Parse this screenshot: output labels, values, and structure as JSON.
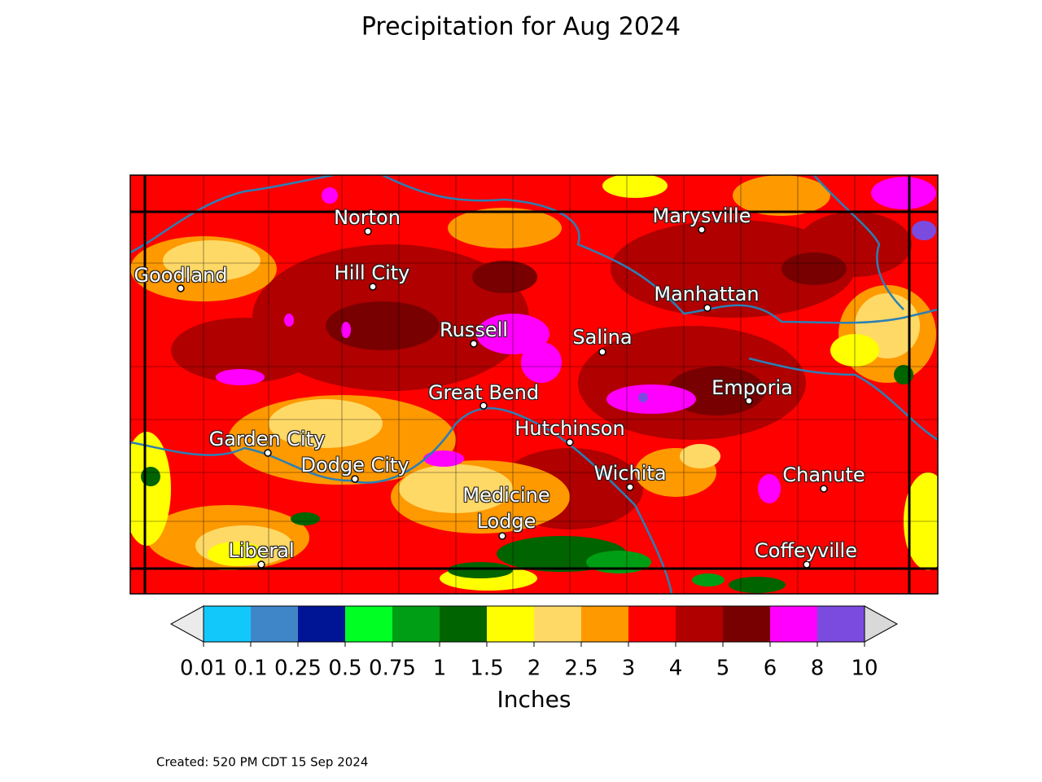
{
  "title": "Precipitation for Aug 2024",
  "cities": [
    {
      "name": "Norton"
    },
    {
      "name": "Marysville"
    },
    {
      "name": "Goodland"
    },
    {
      "name": "Hill City"
    },
    {
      "name": "Manhattan"
    },
    {
      "name": "Russell"
    },
    {
      "name": "Salina"
    },
    {
      "name": "Great Bend"
    },
    {
      "name": "Emporia"
    },
    {
      "name": "Garden City"
    },
    {
      "name": "Hutchinson"
    },
    {
      "name": "Dodge City"
    },
    {
      "name": "Wichita"
    },
    {
      "name": "Chanute"
    },
    {
      "name": "Medicine Lodge"
    },
    {
      "name": "Liberal"
    },
    {
      "name": "Coffeyville"
    }
  ],
  "colorbar": {
    "ticks": [
      0.01,
      0.1,
      0.25,
      0.5,
      0.75,
      1,
      1.5,
      2,
      2.5,
      3,
      4,
      5,
      6,
      8,
      10
    ],
    "colors": [
      "#12c8fa",
      "#3f86c9",
      "#001496",
      "#00ff23",
      "#009e14",
      "#006400",
      "#ffff00",
      "#ffd966",
      "#ff9900",
      "#ff0000",
      "#b00000",
      "#780000",
      "#ff00ff",
      "#7b4be0"
    ],
    "under_color": "#ebebeb",
    "over_color": "#d9d9d9",
    "label": "Inches"
  },
  "footer": "Created: 520 PM CDT 15 Sep 2024"
}
